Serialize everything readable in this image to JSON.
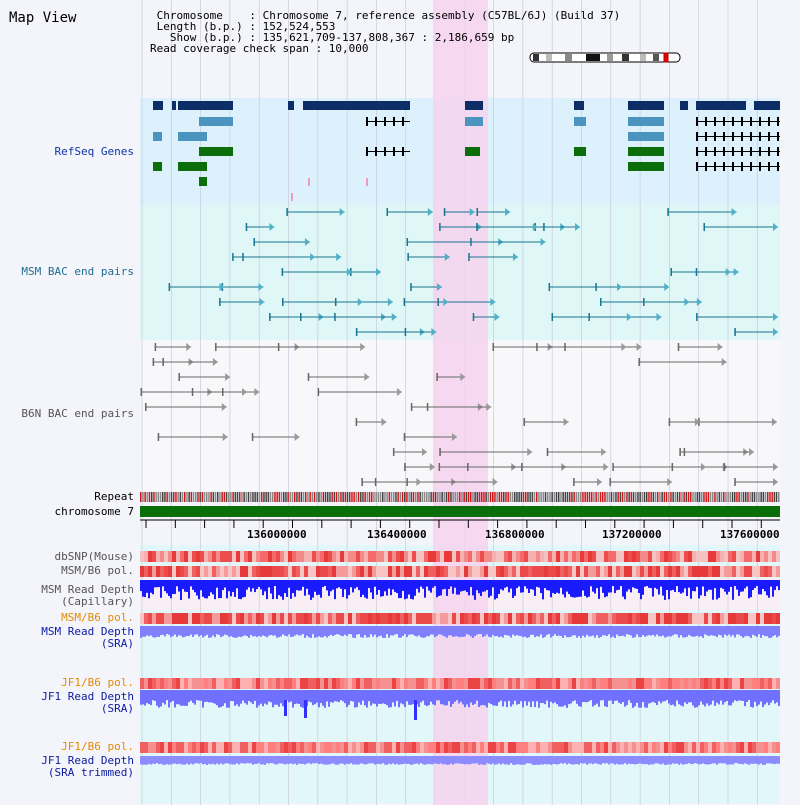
{
  "header": {
    "title": "Map View",
    "chromosome_line": " Chromosome    : Chromosome 7, reference assembly (C57BL/6J) (Build 37)",
    "length_line": " Length (b.p.) : 152,524,553",
    "show_line": "   Show (b.p.) : 135,621,709-137,808,367 : 2,186,659 bp",
    "coverage_line": "Read coverage check span : 10,000"
  },
  "tracks": {
    "refseq": "RefSeq Genes",
    "msm_bac": "MSM BAC end pairs",
    "b6n_bac": "B6N BAC end pairs",
    "repeat": "Repeat",
    "chromosome": "chromosome 7",
    "dbsnp": "dbSNP(Mouse)",
    "msm_b6_pol_1": "MSM/B6 pol.",
    "msm_read_depth_cap_1": "MSM Read Depth",
    "msm_read_depth_cap_2": "(Capillary)",
    "msm_b6_pol_2": "MSM/B6 pol.",
    "msm_read_depth_sra_1": "MSM Read Depth",
    "msm_read_depth_sra_2": "(SRA)",
    "jf1_b6_pol_1": "JF1/B6 pol.",
    "jf1_read_depth_sra_1": "JF1 Read Depth",
    "jf1_read_depth_sra_2": "(SRA)",
    "jf1_b6_pol_2": "JF1/B6 pol.",
    "jf1_read_depth_trim_1": "JF1 Read Depth",
    "jf1_read_depth_trim_2": "(SRA trimmed)"
  },
  "axis": {
    "ticks": [
      "136000000",
      "136400000",
      "136800000",
      "137200000",
      "137600000"
    ]
  },
  "colors": {
    "refseq_bg": "#dcf1fb",
    "msm_bg": "#e0f7f7",
    "highlight": "#f6d4ef",
    "chromosome_bar": "#0a6e0a",
    "depth_blue": "#1a1aff",
    "depth_light": "#8080ff",
    "pol_red": "#ef4444",
    "gene_navy": "#0d2d66",
    "gene_steel": "#4c94c0",
    "gene_green": "#0b6e0b"
  }
}
